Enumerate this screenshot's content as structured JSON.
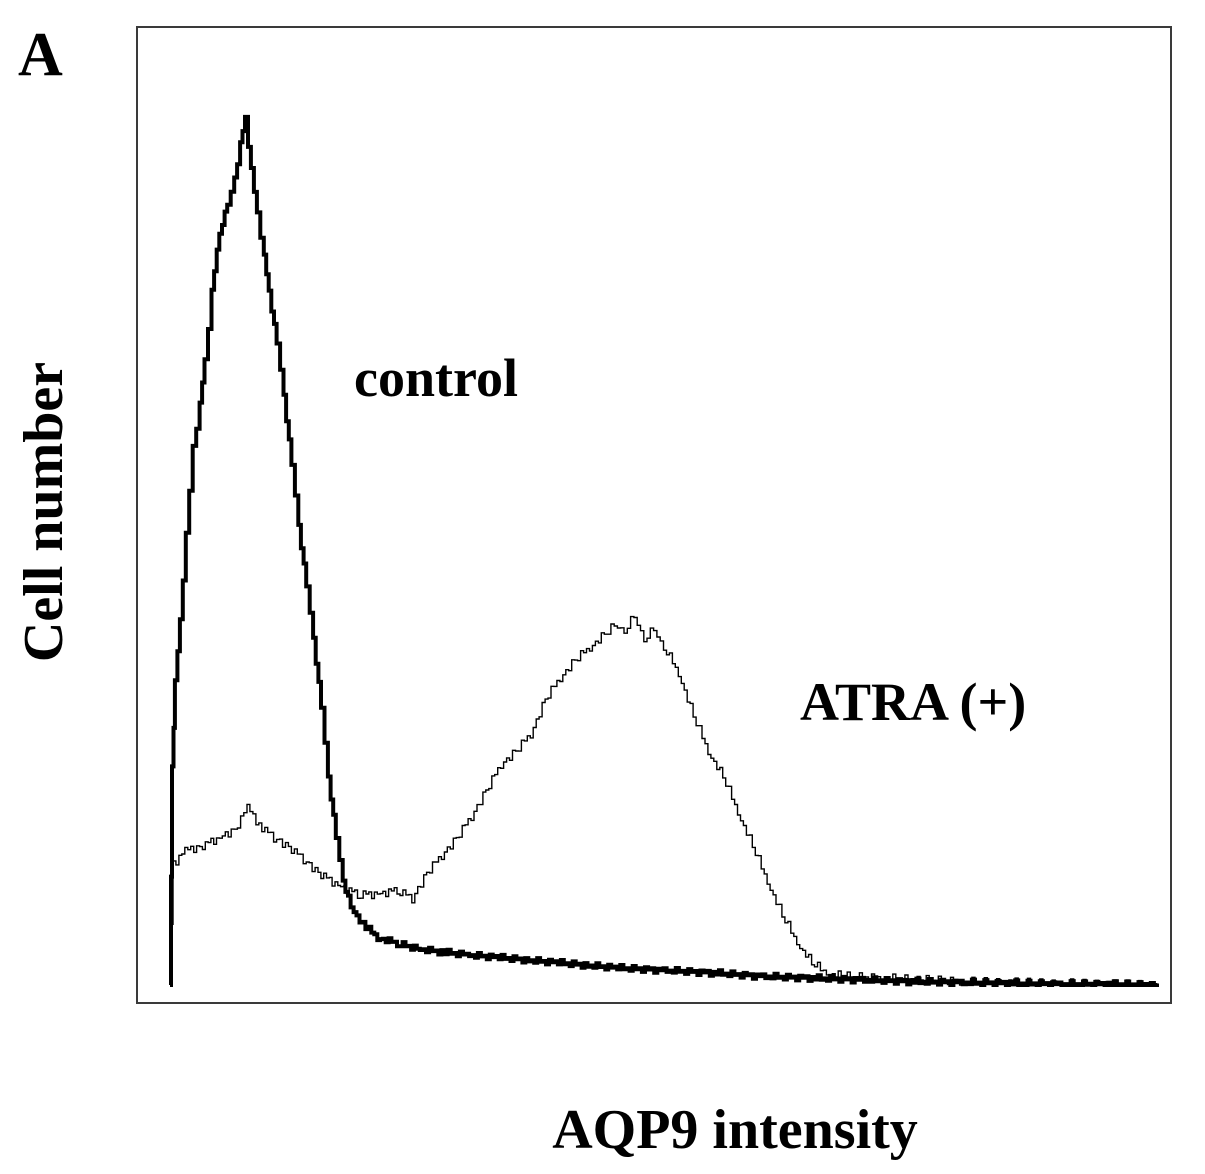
{
  "panel_label": "A",
  "chart_data": {
    "type": "line",
    "title": "",
    "xlabel": "AQP9 intensity",
    "ylabel": "Cell number",
    "xlim": [
      0,
      100
    ],
    "ylim": [
      0,
      100
    ],
    "grid": false,
    "x_ticks_shown": false,
    "y_ticks_shown": false,
    "annotations": [
      "control",
      "ATRA (+)"
    ],
    "series": [
      {
        "name": "control",
        "line_style": "thick",
        "color": "#000000",
        "points": [
          [
            0.0,
            0.0
          ],
          [
            0.2,
            25.0
          ],
          [
            0.5,
            35.0
          ],
          [
            1.0,
            42.0
          ],
          [
            1.6,
            52.0
          ],
          [
            2.3,
            62.0
          ],
          [
            3.0,
            67.0
          ],
          [
            3.5,
            72.0
          ],
          [
            4.2,
            80.0
          ],
          [
            5.0,
            87.0
          ],
          [
            5.8,
            90.0
          ],
          [
            6.5,
            93.0
          ],
          [
            7.1,
            97.0
          ],
          [
            7.6,
            100.0
          ],
          [
            8.2,
            94.0
          ],
          [
            8.8,
            89.0
          ],
          [
            9.5,
            84.0
          ],
          [
            10.0,
            80.0
          ],
          [
            10.8,
            74.0
          ],
          [
            11.5,
            68.0
          ],
          [
            12.3,
            60.0
          ],
          [
            13.0,
            53.0
          ],
          [
            13.8,
            46.0
          ],
          [
            14.5,
            40.0
          ],
          [
            15.3,
            32.0
          ],
          [
            16.0,
            24.0
          ],
          [
            16.8,
            17.0
          ],
          [
            17.5,
            12.0
          ],
          [
            18.3,
            9.0
          ],
          [
            19.5,
            7.0
          ],
          [
            21.0,
            5.5
          ],
          [
            23.0,
            4.8
          ],
          [
            25.0,
            4.2
          ],
          [
            27.5,
            3.8
          ],
          [
            30.0,
            3.5
          ],
          [
            33.0,
            3.2
          ],
          [
            36.0,
            2.9
          ],
          [
            39.0,
            2.6
          ],
          [
            42.0,
            2.3
          ],
          [
            45.0,
            2.0
          ],
          [
            50.0,
            1.7
          ],
          [
            55.0,
            1.4
          ],
          [
            60.0,
            1.0
          ],
          [
            65.0,
            0.8
          ],
          [
            70.0,
            0.6
          ],
          [
            75.0,
            0.4
          ],
          [
            80.0,
            0.3
          ],
          [
            85.0,
            0.2
          ],
          [
            90.0,
            0.1
          ],
          [
            95.0,
            0.1
          ],
          [
            100.0,
            0.0
          ]
        ]
      },
      {
        "name": "ATRA (+)",
        "line_style": "thin",
        "color": "#000000",
        "points": [
          [
            0.0,
            0.0
          ],
          [
            0.3,
            14.0
          ],
          [
            1.5,
            15.5
          ],
          [
            3.0,
            16.0
          ],
          [
            5.0,
            17.0
          ],
          [
            6.5,
            18.0
          ],
          [
            7.8,
            20.5
          ],
          [
            9.0,
            18.5
          ],
          [
            10.5,
            17.0
          ],
          [
            12.0,
            16.0
          ],
          [
            13.5,
            14.5
          ],
          [
            15.0,
            13.0
          ],
          [
            17.0,
            11.5
          ],
          [
            19.0,
            10.5
          ],
          [
            21.0,
            10.5
          ],
          [
            23.0,
            11.0
          ],
          [
            24.5,
            10.0
          ],
          [
            26.0,
            13.0
          ],
          [
            27.5,
            15.0
          ],
          [
            29.0,
            17.0
          ],
          [
            30.5,
            19.5
          ],
          [
            32.0,
            22.5
          ],
          [
            33.5,
            25.5
          ],
          [
            35.0,
            27.0
          ],
          [
            36.5,
            29.0
          ],
          [
            38.0,
            33.0
          ],
          [
            39.5,
            35.5
          ],
          [
            41.0,
            37.5
          ],
          [
            42.5,
            39.0
          ],
          [
            44.0,
            40.5
          ],
          [
            45.0,
            41.5
          ],
          [
            46.0,
            41.0
          ],
          [
            47.0,
            42.5
          ],
          [
            48.0,
            40.0
          ],
          [
            49.0,
            41.0
          ],
          [
            50.0,
            39.0
          ],
          [
            51.5,
            36.0
          ],
          [
            53.0,
            31.0
          ],
          [
            54.5,
            27.0
          ],
          [
            56.0,
            24.0
          ],
          [
            57.5,
            20.0
          ],
          [
            59.0,
            16.0
          ],
          [
            60.5,
            12.0
          ],
          [
            62.0,
            8.0
          ],
          [
            63.5,
            5.0
          ],
          [
            65.0,
            2.5
          ],
          [
            66.5,
            1.5
          ],
          [
            68.0,
            1.0
          ],
          [
            72.0,
            0.8
          ],
          [
            76.0,
            0.6
          ],
          [
            80.0,
            0.4
          ],
          [
            85.0,
            0.3
          ],
          [
            90.0,
            0.2
          ],
          [
            95.0,
            0.1
          ],
          [
            100.0,
            0.0
          ]
        ]
      }
    ]
  }
}
